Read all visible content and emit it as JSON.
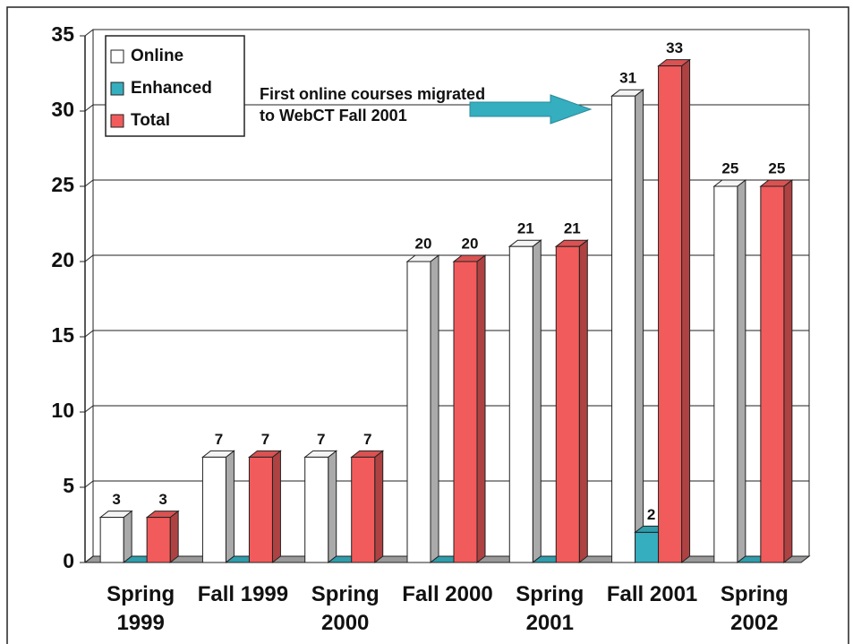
{
  "chart_data": {
    "type": "bar3d",
    "categories": [
      "Spring 1999",
      "Fall 1999",
      "Spring 2000",
      "Fall 2000",
      "Spring 2001",
      "Fall 2001",
      "Spring 2002"
    ],
    "series": [
      {
        "name": "Online",
        "color": "#ffffff",
        "values": [
          3,
          7,
          7,
          20,
          21,
          31,
          25
        ]
      },
      {
        "name": "Enhanced",
        "color": "#35aebf",
        "values": [
          0,
          0,
          0,
          0,
          0,
          2,
          0
        ],
        "value_labels": [
          null,
          null,
          null,
          null,
          null,
          "2",
          null
        ]
      },
      {
        "name": "Total",
        "color": "#f25b5b",
        "values": [
          3,
          7,
          7,
          20,
          21,
          33,
          25
        ]
      }
    ],
    "ylim": [
      0,
      35
    ],
    "yticks": [
      0,
      5,
      10,
      15,
      20,
      25,
      30,
      35
    ],
    "grid": true,
    "legend": "top-left",
    "annotation": [
      "First online courses migrated",
      "to WebCT Fall 2001"
    ]
  }
}
